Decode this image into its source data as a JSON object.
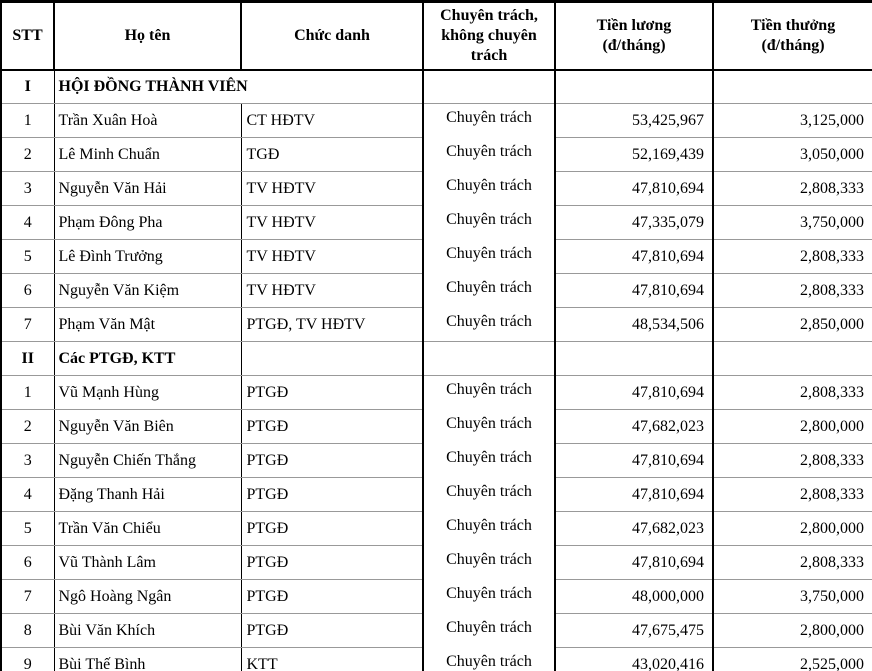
{
  "table": {
    "headers": {
      "stt": "STT",
      "name": "Họ tên",
      "title": "Chức danh",
      "dedication": "Chuyên trách, không chuyên trách",
      "salary_label": "Tiền lương",
      "salary_unit": "(đ/tháng)",
      "bonus_label": "Tiền thưởng",
      "bonus_unit": "(đ/tháng)"
    },
    "sections": [
      {
        "id": "I",
        "label": "HỘI ĐỒNG THÀNH VIÊN",
        "merged_label": true,
        "rows": [
          {
            "stt": "1",
            "name": "Trần Xuân Hoà",
            "title": "CT HĐTV",
            "dedication": "Chuyên trách",
            "salary": "53,425,967",
            "bonus": "3,125,000"
          },
          {
            "stt": "2",
            "name": "Lê Minh Chuẩn",
            "title": "TGĐ",
            "dedication": "Chuyên trách",
            "salary": "52,169,439",
            "bonus": "3,050,000"
          },
          {
            "stt": "3",
            "name": "Nguyễn Văn Hải",
            "title": "TV HĐTV",
            "dedication": "Chuyên trách",
            "salary": "47,810,694",
            "bonus": "2,808,333"
          },
          {
            "stt": "4",
            "name": "Phạm Đông Pha",
            "title": "TV HĐTV",
            "dedication": "Chuyên trách",
            "salary": "47,335,079",
            "bonus": "3,750,000"
          },
          {
            "stt": "5",
            "name": "Lê Đình Trưởng",
            "title": "TV HĐTV",
            "dedication": "Chuyên trách",
            "salary": "47,810,694",
            "bonus": "2,808,333"
          },
          {
            "stt": "6",
            "name": "Nguyễn Văn Kiệm",
            "title": "TV HĐTV",
            "dedication": "Chuyên trách",
            "salary": "47,810,694",
            "bonus": "2,808,333"
          },
          {
            "stt": "7",
            "name": "Phạm Văn Mật",
            "title": "PTGĐ, TV HĐTV",
            "dedication": "Chuyên trách",
            "salary": "48,534,506",
            "bonus": "2,850,000"
          }
        ]
      },
      {
        "id": "II",
        "label": "Các PTGĐ, KTT",
        "merged_label": false,
        "rows": [
          {
            "stt": "1",
            "name": "Vũ Mạnh Hùng",
            "title": "PTGĐ",
            "dedication": "Chuyên trách",
            "salary": "47,810,694",
            "bonus": "2,808,333"
          },
          {
            "stt": "2",
            "name": "Nguyễn Văn Biên",
            "title": "PTGĐ",
            "dedication": "Chuyên trách",
            "salary": "47,682,023",
            "bonus": "2,800,000"
          },
          {
            "stt": "3",
            "name": "Nguyễn Chiến Thắng",
            "title": "PTGĐ",
            "dedication": "Chuyên trách",
            "salary": "47,810,694",
            "bonus": "2,808,333"
          },
          {
            "stt": "4",
            "name": "Đặng Thanh Hải",
            "title": "PTGĐ",
            "dedication": "Chuyên trách",
            "salary": "47,810,694",
            "bonus": "2,808,333"
          },
          {
            "stt": "5",
            "name": "Trần Văn Chiểu",
            "title": "PTGĐ",
            "dedication": "Chuyên trách",
            "salary": "47,682,023",
            "bonus": "2,800,000"
          },
          {
            "stt": "6",
            "name": "Vũ Thành Lâm",
            "title": "PTGĐ",
            "dedication": "Chuyên trách",
            "salary": "47,810,694",
            "bonus": "2,808,333"
          },
          {
            "stt": "7",
            "name": "Ngô Hoàng Ngân",
            "title": "PTGĐ",
            "dedication": "Chuyên trách",
            "salary": "48,000,000",
            "bonus": "3,750,000"
          },
          {
            "stt": "8",
            "name": "Bùi Văn Khích",
            "title": "PTGĐ",
            "dedication": "Chuyên trách",
            "salary": "47,675,475",
            "bonus": "2,800,000"
          },
          {
            "stt": "9",
            "name": "Bùi Thế Bình",
            "title": "KTT",
            "dedication": "Chuyên trách",
            "salary": "43,020,416",
            "bonus": "2,525,000"
          }
        ]
      }
    ]
  },
  "chart_data": {
    "type": "table",
    "title": "",
    "columns": [
      "STT",
      "Họ tên",
      "Chức danh",
      "Chuyên trách, không chuyên trách",
      "Tiền lương (đ/tháng)",
      "Tiền thưởng (đ/tháng)"
    ]
  }
}
